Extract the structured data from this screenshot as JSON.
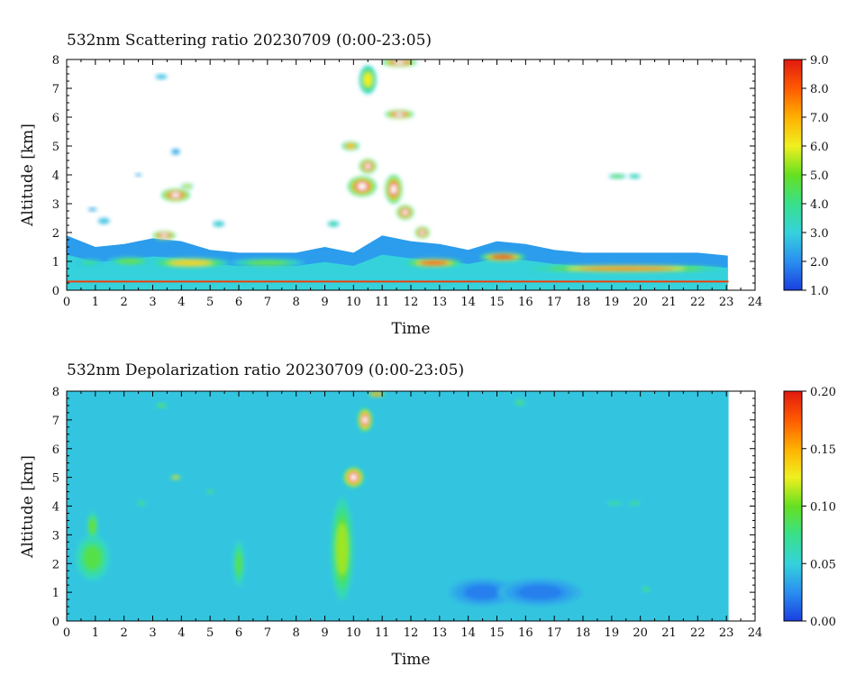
{
  "panels": [
    {
      "title": "532nm Scattering ratio  20230709 (0:00-23:05)",
      "xlabel": "Time",
      "ylabel": "Altitude [km]",
      "colorbar": {
        "min": 1.0,
        "max": 9.0,
        "ticks": [
          "1.0",
          "2.0",
          "3.0",
          "4.0",
          "5.0",
          "6.0",
          "7.0",
          "8.0",
          "9.0"
        ]
      }
    },
    {
      "title": "532nm Depolarization ratio  20230709 (0:00-23:05)",
      "xlabel": "Time",
      "ylabel": "Altitude [km]",
      "colorbar": {
        "min": 0.0,
        "max": 0.2,
        "ticks": [
          "0.00",
          "0.05",
          "0.10",
          "0.15",
          "0.20"
        ]
      }
    }
  ],
  "x_ticks": [
    "0",
    "1",
    "2",
    "3",
    "4",
    "5",
    "6",
    "7",
    "8",
    "9",
    "10",
    "11",
    "12",
    "13",
    "14",
    "15",
    "16",
    "17",
    "18",
    "19",
    "20",
    "21",
    "22",
    "23",
    "24"
  ],
  "y_ticks": [
    "0",
    "1",
    "2",
    "3",
    "4",
    "5",
    "6",
    "7",
    "8"
  ],
  "colormap": [
    "#1a3fe0",
    "#2a8ff0",
    "#35d2dc",
    "#38e08a",
    "#66e020",
    "#f0f020",
    "#ffb000",
    "#ff5a00",
    "#e01a10"
  ],
  "chart_data": [
    {
      "type": "heatmap",
      "title": "532nm Scattering ratio  20230709 (0:00-23:05)",
      "xlabel": "Time",
      "ylabel": "Altitude [km]",
      "xlim": [
        0,
        24
      ],
      "ylim": [
        0,
        8
      ],
      "data_time_range": [
        0,
        23.08
      ],
      "value_range": [
        1.0,
        9.0
      ],
      "background_profile": [
        {
          "x": 0,
          "top": 1.9
        },
        {
          "x": 1,
          "top": 1.5
        },
        {
          "x": 2,
          "top": 1.6
        },
        {
          "x": 3,
          "top": 1.8
        },
        {
          "x": 4,
          "top": 1.7
        },
        {
          "x": 5,
          "top": 1.4
        },
        {
          "x": 6,
          "top": 1.3
        },
        {
          "x": 7,
          "top": 1.3
        },
        {
          "x": 8,
          "top": 1.3
        },
        {
          "x": 9,
          "top": 1.5
        },
        {
          "x": 10,
          "top": 1.3
        },
        {
          "x": 11,
          "top": 1.9
        },
        {
          "x": 12,
          "top": 1.7
        },
        {
          "x": 13,
          "top": 1.6
        },
        {
          "x": 14,
          "top": 1.4
        },
        {
          "x": 15,
          "top": 1.7
        },
        {
          "x": 16,
          "top": 1.6
        },
        {
          "x": 17,
          "top": 1.4
        },
        {
          "x": 18,
          "top": 1.3
        },
        {
          "x": 19,
          "top": 1.3
        },
        {
          "x": 20,
          "top": 1.3
        },
        {
          "x": 21,
          "top": 1.3
        },
        {
          "x": 22,
          "top": 1.3
        },
        {
          "x": 23.05,
          "top": 1.2
        }
      ],
      "features": [
        {
          "x": 0.8,
          "y": 0.95,
          "rx": 0.5,
          "ry": 0.12,
          "v": 4.0
        },
        {
          "x": 2.2,
          "y": 1.0,
          "rx": 0.8,
          "ry": 0.15,
          "v": 5.0
        },
        {
          "x": 4.3,
          "y": 0.95,
          "rx": 1.4,
          "ry": 0.18,
          "v": 6.5
        },
        {
          "x": 7.0,
          "y": 0.95,
          "rx": 1.3,
          "ry": 0.15,
          "v": 5.0
        },
        {
          "x": 12.8,
          "y": 0.95,
          "rx": 1.0,
          "ry": 0.15,
          "v": 8.0
        },
        {
          "x": 15.2,
          "y": 1.15,
          "rx": 0.8,
          "ry": 0.15,
          "v": 8.5
        },
        {
          "x": 19.5,
          "y": 0.75,
          "rx": 3.4,
          "ry": 0.13,
          "v": 7.5
        },
        {
          "x": 3.4,
          "y": 1.9,
          "rx": 0.4,
          "ry": 0.15,
          "v": 9.0
        },
        {
          "x": 3.8,
          "y": 3.3,
          "rx": 0.5,
          "ry": 0.22,
          "v": 9.0
        },
        {
          "x": 4.2,
          "y": 3.6,
          "rx": 0.2,
          "ry": 0.1,
          "v": 6.0
        },
        {
          "x": 1.3,
          "y": 2.4,
          "rx": 0.2,
          "ry": 0.1,
          "v": 3.0
        },
        {
          "x": 3.3,
          "y": 7.4,
          "rx": 0.2,
          "ry": 0.08,
          "v": 3.0
        },
        {
          "x": 3.8,
          "y": 4.8,
          "rx": 0.15,
          "ry": 0.1,
          "v": 2.5
        },
        {
          "x": 2.5,
          "y": 4.0,
          "rx": 0.1,
          "ry": 0.05,
          "v": 2.5
        },
        {
          "x": 0.9,
          "y": 2.8,
          "rx": 0.15,
          "ry": 0.06,
          "v": 2.5
        },
        {
          "x": 10.3,
          "y": 3.6,
          "rx": 0.5,
          "ry": 0.35,
          "v": 9.0
        },
        {
          "x": 10.5,
          "y": 4.3,
          "rx": 0.3,
          "ry": 0.25,
          "v": 9.0
        },
        {
          "x": 11.4,
          "y": 3.5,
          "rx": 0.3,
          "ry": 0.5,
          "v": 9.0
        },
        {
          "x": 11.8,
          "y": 2.7,
          "rx": 0.3,
          "ry": 0.25,
          "v": 9.0
        },
        {
          "x": 12.4,
          "y": 2.0,
          "rx": 0.25,
          "ry": 0.2,
          "v": 9.0
        },
        {
          "x": 9.9,
          "y": 5.0,
          "rx": 0.3,
          "ry": 0.15,
          "v": 7.0
        },
        {
          "x": 11.6,
          "y": 6.1,
          "rx": 0.5,
          "ry": 0.15,
          "v": 9.0
        },
        {
          "x": 10.5,
          "y": 7.3,
          "rx": 0.3,
          "ry": 0.5,
          "v": 6.0
        },
        {
          "x": 11.6,
          "y": 7.9,
          "rx": 0.6,
          "ry": 0.15,
          "v": 9.0
        },
        {
          "x": 19.2,
          "y": 3.95,
          "rx": 0.3,
          "ry": 0.08,
          "v": 5.0
        },
        {
          "x": 19.8,
          "y": 3.95,
          "rx": 0.2,
          "ry": 0.08,
          "v": 4.0
        },
        {
          "x": 9.3,
          "y": 2.3,
          "rx": 0.2,
          "ry": 0.1,
          "v": 4.0
        },
        {
          "x": 5.3,
          "y": 2.3,
          "rx": 0.2,
          "ry": 0.1,
          "v": 3.5
        }
      ]
    },
    {
      "type": "heatmap",
      "title": "532nm Depolarization ratio  20230709 (0:00-23:05)",
      "xlabel": "Time",
      "ylabel": "Altitude [km]",
      "xlim": [
        0,
        24
      ],
      "ylim": [
        0,
        8
      ],
      "data_time_range": [
        0,
        23.08
      ],
      "value_range": [
        0.0,
        0.2
      ],
      "background_value": 0.045,
      "features": [
        {
          "x": 0.9,
          "y": 2.2,
          "rx": 0.6,
          "ry": 0.8,
          "v": 0.09
        },
        {
          "x": 0.9,
          "y": 3.3,
          "rx": 0.2,
          "ry": 0.5,
          "v": 0.1
        },
        {
          "x": 6.0,
          "y": 2.0,
          "rx": 0.2,
          "ry": 0.8,
          "v": 0.09
        },
        {
          "x": 9.6,
          "y": 2.5,
          "rx": 0.4,
          "ry": 1.8,
          "v": 0.11
        },
        {
          "x": 10.0,
          "y": 5.0,
          "rx": 0.35,
          "ry": 0.35,
          "v": 0.2
        },
        {
          "x": 10.4,
          "y": 7.0,
          "rx": 0.25,
          "ry": 0.4,
          "v": 0.2
        },
        {
          "x": 10.8,
          "y": 7.9,
          "rx": 0.3,
          "ry": 0.1,
          "v": 0.16
        },
        {
          "x": 3.3,
          "y": 7.5,
          "rx": 0.2,
          "ry": 0.08,
          "v": 0.1
        },
        {
          "x": 3.8,
          "y": 5.0,
          "rx": 0.2,
          "ry": 0.08,
          "v": 0.14
        },
        {
          "x": 2.6,
          "y": 4.1,
          "rx": 0.15,
          "ry": 0.08,
          "v": 0.09
        },
        {
          "x": 5.0,
          "y": 4.5,
          "rx": 0.15,
          "ry": 0.06,
          "v": 0.1
        },
        {
          "x": 19.1,
          "y": 4.1,
          "rx": 0.3,
          "ry": 0.07,
          "v": 0.08
        },
        {
          "x": 19.8,
          "y": 4.1,
          "rx": 0.2,
          "ry": 0.07,
          "v": 0.09
        },
        {
          "x": 15.8,
          "y": 7.6,
          "rx": 0.2,
          "ry": 0.1,
          "v": 0.09
        },
        {
          "x": 20.2,
          "y": 1.1,
          "rx": 0.15,
          "ry": 0.08,
          "v": 0.09
        },
        {
          "x": 14.5,
          "y": 1.0,
          "rx": 1.2,
          "ry": 0.5,
          "v": 0.02
        },
        {
          "x": 16.5,
          "y": 1.0,
          "rx": 1.5,
          "ry": 0.5,
          "v": 0.02
        }
      ]
    }
  ]
}
